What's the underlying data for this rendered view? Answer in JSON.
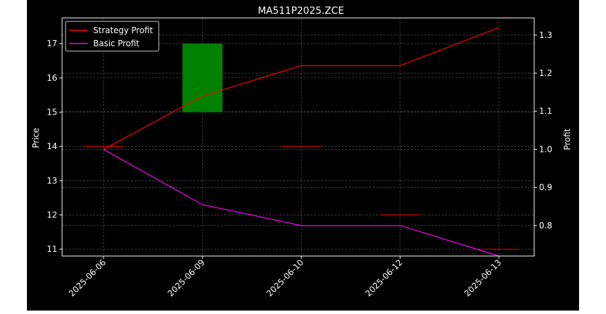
{
  "chart_data": {
    "type": "candlestick+line",
    "title": "MA511P2025.ZCE",
    "xlabel": "",
    "ylabel_left": "Price",
    "ylabel_right": "Profit",
    "categories": [
      "2025-06-06",
      "2025-06-09",
      "2025-06-10",
      "2025-06-12",
      "2025-06-13"
    ],
    "ylim_left": [
      10.8,
      17.75
    ],
    "yticks_left": [
      11,
      12,
      13,
      14,
      15,
      16,
      17
    ],
    "ylim_right": [
      0.72,
      1.345
    ],
    "yticks_right": [
      0.8,
      0.9,
      1.0,
      1.1,
      1.2,
      1.3
    ],
    "grid": true,
    "legend_position": "top-left",
    "candles": [
      {
        "date": "2025-06-06",
        "open": 14.0,
        "high": 14.0,
        "low": 14.0,
        "close": 14.0,
        "color": "#ff0000"
      },
      {
        "date": "2025-06-09",
        "open": 15.0,
        "high": 17.0,
        "low": 15.0,
        "close": 17.0,
        "color": "#008000"
      },
      {
        "date": "2025-06-10",
        "open": 14.0,
        "high": 14.0,
        "low": 14.0,
        "close": 14.0,
        "color": "#ff0000"
      },
      {
        "date": "2025-06-12",
        "open": 12.0,
        "high": 12.0,
        "low": 12.0,
        "close": 12.0,
        "color": "#ff0000"
      },
      {
        "date": "2025-06-13",
        "open": 11.0,
        "high": 11.0,
        "low": 11.0,
        "close": 11.0,
        "color": "#ff0000"
      }
    ],
    "series": [
      {
        "name": "Strategy Profit",
        "color": "#ff0000",
        "axis": "right",
        "values": [
          1.0,
          1.14,
          1.22,
          1.22,
          1.32
        ]
      },
      {
        "name": "Basic Profit",
        "color": "#ff00ff",
        "axis": "right",
        "values": [
          1.0,
          0.855,
          0.8,
          0.8,
          0.72
        ]
      }
    ]
  }
}
